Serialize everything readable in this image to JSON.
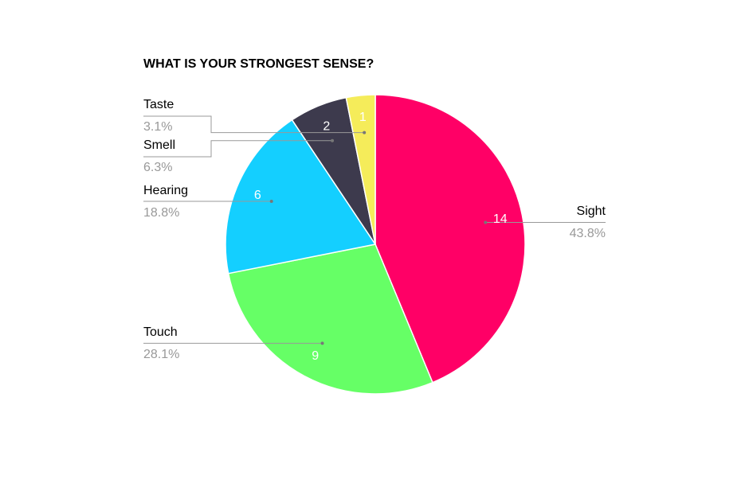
{
  "chart_data": {
    "type": "pie",
    "title": "WHAT IS YOUR STRONGEST SENSE?",
    "categories": [
      "Sight",
      "Touch",
      "Hearing",
      "Smell",
      "Taste"
    ],
    "values": [
      14,
      9,
      6,
      2,
      1
    ],
    "percent_labels": [
      "43.8%",
      "28.1%",
      "18.8%",
      "6.3%",
      "3.1%"
    ],
    "colors": [
      "#ff0066",
      "#66ff66",
      "#14cfff",
      "#3d3a4d",
      "#f5ec5a"
    ]
  }
}
